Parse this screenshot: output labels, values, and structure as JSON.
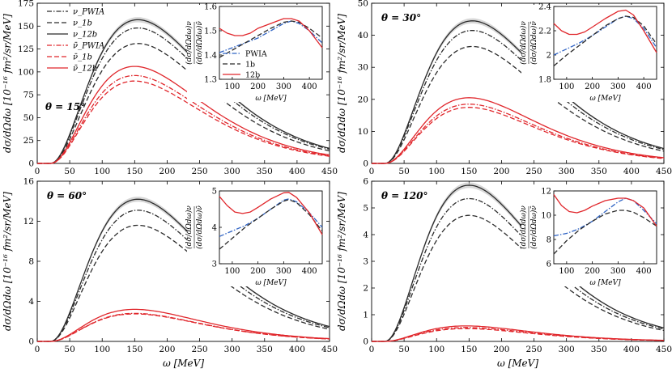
{
  "figure": {
    "x_axis_label": "ω [MeV]",
    "y_axis_label_main": "dσ/dΩdω [10⁻¹⁶ fm²/sr/MeV]",
    "y_axis_label_top_left": "dσ/dΩdω [10⁻¹⁶ fm²/sr/MeV]",
    "inset_y_label_top": "(dσ/dΩdω)ν",
    "inset_y_label_bottom": "(dσ/dΩdω)ν̄",
    "inset_x_label": "ω [MeV]"
  },
  "legend_main": [
    {
      "label": "ν_PWIA",
      "style": "dashdot",
      "color": "#2b2b2b"
    },
    {
      "label": "ν_1b",
      "style": "dash",
      "color": "#2b2b2b"
    },
    {
      "label": "ν_12b",
      "style": "solid",
      "color": "#2b2b2b"
    },
    {
      "label": "ν̄_PWIA",
      "style": "dashdot",
      "color": "#e0262b"
    },
    {
      "label": "ν̄_1b",
      "style": "dash",
      "color": "#e0262b"
    },
    {
      "label": "ν̄_12b",
      "style": "solid",
      "color": "#e0262b"
    }
  ],
  "legend_inset": [
    {
      "label": "PWIA",
      "style": "dashdot",
      "color": "#2f63c4"
    },
    {
      "label": "1b",
      "style": "dash",
      "color": "#2b2b2b"
    },
    {
      "label": "12b",
      "style": "solid",
      "color": "#e0262b"
    }
  ],
  "colors": {
    "nu": "#2b2b2b",
    "nubar": "#e0262b",
    "pwia_ratio": "#2f63c4",
    "band": "#bdbdbd"
  },
  "chart_data": [
    {
      "type": "line",
      "angle_label": "θ = 15°",
      "xlim": [
        0,
        450
      ],
      "ylim": [
        0,
        175
      ],
      "xticks": [
        0,
        50,
        100,
        150,
        200,
        250,
        300,
        350,
        400,
        450
      ],
      "yticks": [
        0,
        25,
        50,
        75,
        100,
        125,
        150,
        175
      ],
      "series": [
        {
          "name": "ν_PWIA",
          "peak": 148,
          "peak_x": 155
        },
        {
          "name": "ν_1b",
          "peak": 131,
          "peak_x": 155
        },
        {
          "name": "ν_12b",
          "peak": 157,
          "peak_x": 155
        },
        {
          "name": "ν̄_PWIA",
          "peak": 96,
          "peak_x": 150
        },
        {
          "name": "ν̄_1b",
          "peak": 90,
          "peak_x": 150
        },
        {
          "name": "ν̄_12b",
          "peak": 106,
          "peak_x": 150
        }
      ],
      "inset": {
        "xlim": [
          50,
          450
        ],
        "ylim": [
          1.3,
          1.6
        ],
        "xticks": [
          100,
          200,
          300,
          400
        ],
        "yticks": [
          1.3,
          1.4,
          1.5,
          1.6
        ],
        "series": [
          {
            "name": "PWIA",
            "x": [
              50,
              100,
              150,
              200,
              250,
              300,
              330,
              360,
              400,
              450
            ],
            "y": [
              1.41,
              1.43,
              1.45,
              1.47,
              1.5,
              1.53,
              1.54,
              1.53,
              1.5,
              1.45
            ]
          },
          {
            "name": "1b",
            "x": [
              50,
              100,
              150,
              200,
              250,
              300,
              330,
              360,
              400,
              450
            ],
            "y": [
              1.39,
              1.42,
              1.45,
              1.48,
              1.51,
              1.535,
              1.54,
              1.535,
              1.51,
              1.47
            ]
          },
          {
            "name": "12b",
            "x": [
              50,
              80,
              110,
              140,
              170,
              200,
              250,
              300,
              330,
              360,
              400,
              450
            ],
            "y": [
              1.51,
              1.49,
              1.48,
              1.48,
              1.49,
              1.51,
              1.53,
              1.55,
              1.55,
              1.54,
              1.5,
              1.43
            ]
          }
        ]
      }
    },
    {
      "type": "line",
      "angle_label": "θ = 30°",
      "xlim": [
        0,
        450
      ],
      "ylim": [
        0,
        50
      ],
      "xticks": [
        0,
        50,
        100,
        150,
        200,
        250,
        300,
        350,
        400,
        450
      ],
      "yticks": [
        0,
        10,
        20,
        30,
        40,
        50
      ],
      "series": [
        {
          "name": "ν_PWIA",
          "peak": 41.5,
          "peak_x": 155
        },
        {
          "name": "ν_1b",
          "peak": 36.5,
          "peak_x": 155
        },
        {
          "name": "ν_12b",
          "peak": 44.5,
          "peak_x": 155
        },
        {
          "name": "ν̄_PWIA",
          "peak": 18.5,
          "peak_x": 150
        },
        {
          "name": "ν̄_1b",
          "peak": 17.5,
          "peak_x": 150
        },
        {
          "name": "ν̄_12b",
          "peak": 20.5,
          "peak_x": 150
        }
      ],
      "inset": {
        "xlim": [
          50,
          450
        ],
        "ylim": [
          1.8,
          2.4
        ],
        "xticks": [
          100,
          200,
          300,
          400
        ],
        "yticks": [
          1.8,
          2.0,
          2.2,
          2.4
        ],
        "series": [
          {
            "name": "PWIA",
            "x": [
              50,
              100,
              150,
              200,
              250,
              300,
              330,
              360,
              400,
              450
            ],
            "y": [
              2.0,
              2.05,
              2.1,
              2.16,
              2.23,
              2.3,
              2.32,
              2.3,
              2.22,
              2.06
            ]
          },
          {
            "name": "1b",
            "x": [
              50,
              100,
              150,
              200,
              250,
              300,
              330,
              360,
              400,
              450
            ],
            "y": [
              1.91,
              2.0,
              2.08,
              2.16,
              2.24,
              2.3,
              2.32,
              2.31,
              2.24,
              2.09
            ]
          },
          {
            "name": "12b",
            "x": [
              50,
              80,
              110,
              140,
              170,
              200,
              250,
              300,
              330,
              360,
              400,
              450
            ],
            "y": [
              2.26,
              2.2,
              2.17,
              2.17,
              2.19,
              2.23,
              2.3,
              2.36,
              2.37,
              2.33,
              2.2,
              2.02
            ]
          }
        ]
      }
    },
    {
      "type": "line",
      "angle_label": "θ = 60°",
      "xlim": [
        0,
        450
      ],
      "ylim": [
        0,
        16
      ],
      "xticks": [
        0,
        50,
        100,
        150,
        200,
        250,
        300,
        350,
        400,
        450
      ],
      "yticks": [
        0,
        4,
        8,
        12,
        16
      ],
      "series": [
        {
          "name": "ν_PWIA",
          "peak": 13.1,
          "peak_x": 155
        },
        {
          "name": "ν_1b",
          "peak": 11.6,
          "peak_x": 155
        },
        {
          "name": "ν_12b",
          "peak": 14.2,
          "peak_x": 155
        },
        {
          "name": "ν̄_PWIA",
          "peak": 2.8,
          "peak_x": 150
        },
        {
          "name": "ν̄_1b",
          "peak": 2.75,
          "peak_x": 150
        },
        {
          "name": "ν̄_12b",
          "peak": 3.2,
          "peak_x": 150
        }
      ],
      "inset": {
        "xlim": [
          50,
          450
        ],
        "ylim": [
          3,
          5
        ],
        "xticks": [
          100,
          200,
          300,
          400
        ],
        "yticks": [
          3,
          4,
          5
        ],
        "series": [
          {
            "name": "PWIA",
            "x": [
              50,
              100,
              150,
              200,
              250,
              300,
              320,
              350,
              400,
              450
            ],
            "y": [
              3.75,
              3.9,
              4.05,
              4.25,
              4.5,
              4.75,
              4.78,
              4.7,
              4.4,
              4.0
            ]
          },
          {
            "name": "1b",
            "x": [
              50,
              100,
              150,
              200,
              250,
              300,
              320,
              350,
              400,
              450
            ],
            "y": [
              3.4,
              3.7,
              4.0,
              4.25,
              4.5,
              4.72,
              4.76,
              4.68,
              4.35,
              3.9
            ]
          },
          {
            "name": "12b",
            "x": [
              50,
              80,
              110,
              140,
              170,
              200,
              250,
              300,
              320,
              350,
              400,
              450
            ],
            "y": [
              4.85,
              4.6,
              4.42,
              4.38,
              4.42,
              4.55,
              4.78,
              4.95,
              4.96,
              4.82,
              4.4,
              3.8
            ]
          }
        ]
      }
    },
    {
      "type": "line",
      "angle_label": "θ = 120°",
      "xlim": [
        0,
        450
      ],
      "ylim": [
        0,
        6
      ],
      "xticks": [
        0,
        50,
        100,
        150,
        200,
        250,
        300,
        350,
        400,
        450
      ],
      "yticks": [
        0,
        1,
        2,
        3,
        4,
        5,
        6
      ],
      "series": [
        {
          "name": "ν_PWIA",
          "peak": 5.35,
          "peak_x": 150
        },
        {
          "name": "ν_1b",
          "peak": 4.72,
          "peak_x": 150
        },
        {
          "name": "ν_12b",
          "peak": 5.85,
          "peak_x": 150
        },
        {
          "name": "ν̄_PWIA",
          "peak": 0.52,
          "peak_x": 145
        },
        {
          "name": "ν̄_1b",
          "peak": 0.48,
          "peak_x": 145
        },
        {
          "name": "ν̄_12b",
          "peak": 0.58,
          "peak_x": 145
        }
      ],
      "inset": {
        "xlim": [
          50,
          450
        ],
        "ylim": [
          6,
          12
        ],
        "xticks": [
          100,
          200,
          300,
          400
        ],
        "yticks": [
          6,
          8,
          10,
          12
        ],
        "series": [
          {
            "name": "PWIA",
            "x": [
              50,
              100,
              150,
              200,
              250,
              300,
              330,
              360,
              400,
              450
            ],
            "y": [
              8.3,
              8.5,
              8.9,
              9.5,
              10.3,
              11.1,
              11.4,
              11.2,
              10.4,
              9.3
            ]
          },
          {
            "name": "1b",
            "x": [
              50,
              100,
              150,
              200,
              250,
              300,
              330,
              360,
              400,
              450
            ],
            "y": [
              6.8,
              7.9,
              8.8,
              9.5,
              10.1,
              10.4,
              10.4,
              10.25,
              9.8,
              9.1
            ]
          },
          {
            "name": "12b",
            "x": [
              50,
              80,
              110,
              140,
              170,
              200,
              250,
              300,
              330,
              360,
              400,
              450
            ],
            "y": [
              11.7,
              10.8,
              10.3,
              10.2,
              10.4,
              10.75,
              11.2,
              11.4,
              11.4,
              11.2,
              10.6,
              9.1
            ]
          }
        ]
      }
    }
  ]
}
